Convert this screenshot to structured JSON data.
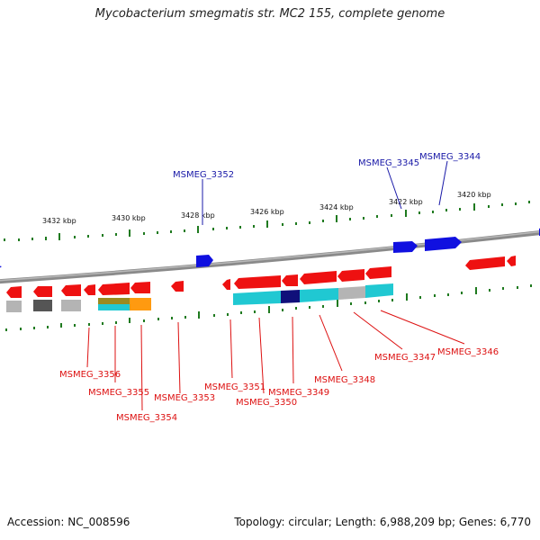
{
  "title": "Mycobacterium smegmatis str. MC2 155, complete genome",
  "footer": {
    "accession": "Accession: NC_008596",
    "summary": "Topology: circular; Length: 6,988,209 bp; Genes: 6,770"
  },
  "colors": {
    "forward_gene": "#1010e0",
    "reverse_gene": "#ee1111",
    "forward_label": "#1a1aa8",
    "reverse_label": "#dd1111",
    "tick": "#1f7a1f",
    "backbone": "#808080",
    "cyan_feature": "#20c8d2",
    "navy_feature": "#10107a",
    "gray_feature": "#b4b4b4",
    "orange_feature": "#ff9a10",
    "olive_feature": "#9a8a20"
  },
  "kbp_labels": [
    "3432 kbp",
    "3430 kbp",
    "3428 kbp",
    "3426 kbp",
    "3424 kbp",
    "3422 kbp",
    "3420 kbp"
  ],
  "forward_labels": [
    "MSMEG_3352",
    "MSMEG_3345",
    "MSMEG_3344"
  ],
  "reverse_labels": [
    "MSMEG_3356",
    "MSMEG_3355",
    "MSMEG_3354",
    "MSMEG_3353",
    "MSMEG_3351",
    "MSMEG_3350",
    "MSMEG_3349",
    "MSMEG_3348",
    "MSMEG_3347",
    "MSMEG_3346"
  ]
}
